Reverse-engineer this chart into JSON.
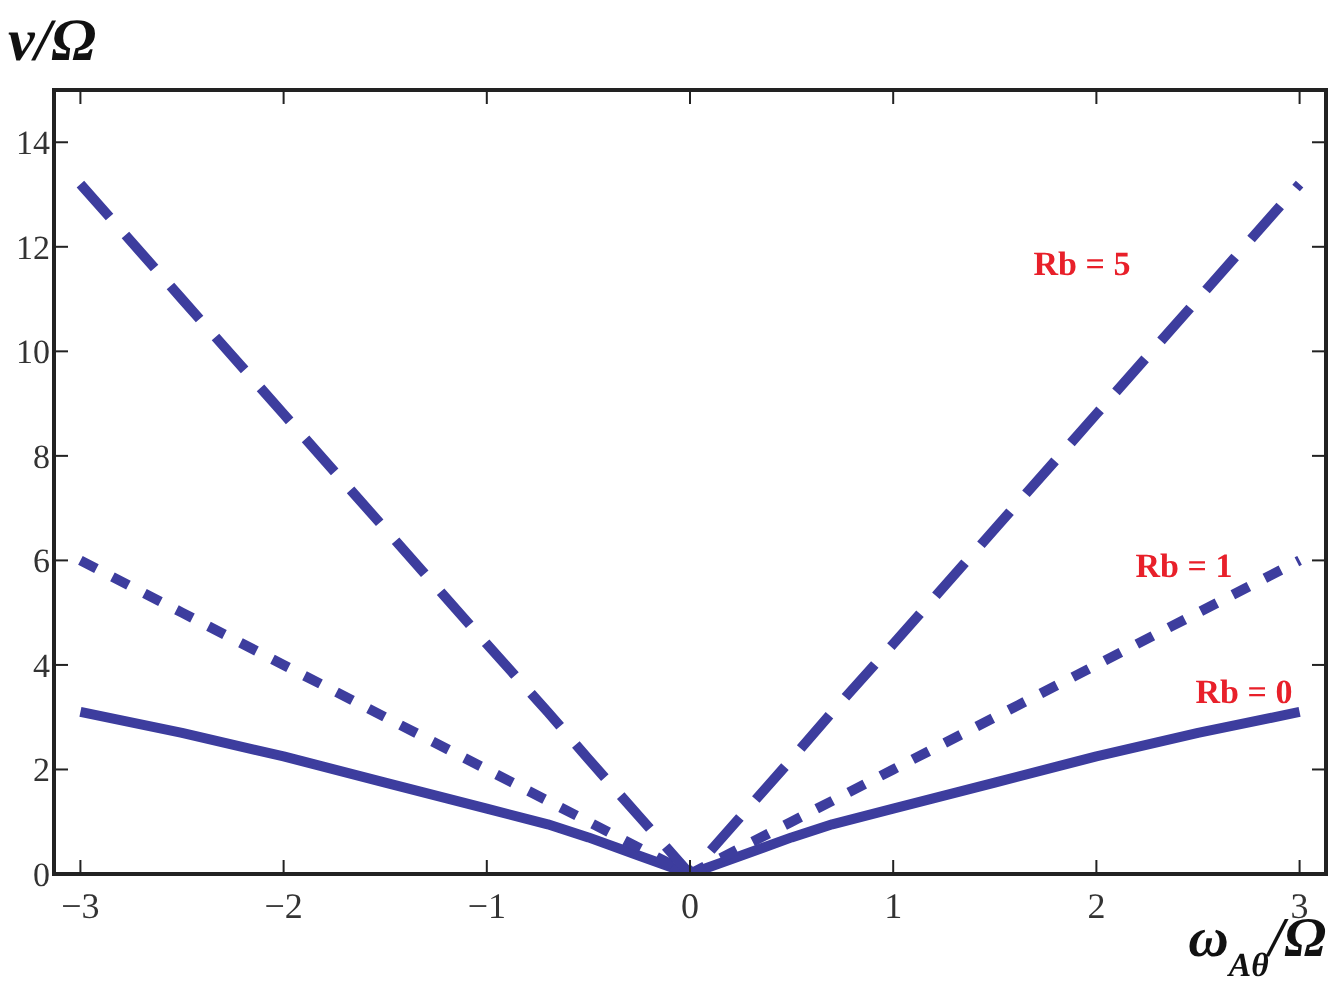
{
  "chart_data": {
    "type": "line",
    "xlabel": "ω$_{Aθ}$/Ω",
    "ylabel": "ν/Ω",
    "xlim": [
      -3.13,
      3.13
    ],
    "ylim": [
      0,
      15
    ],
    "xticks": [
      {
        "value": -3,
        "label": "−3"
      },
      {
        "value": -2,
        "label": "−2"
      },
      {
        "value": -1,
        "label": "−1"
      },
      0,
      1,
      2,
      3
    ],
    "yticks": [
      0,
      2,
      4,
      6,
      8,
      10,
      12,
      14
    ],
    "grid": false,
    "legend": false,
    "marker": "none",
    "x": [
      -3,
      -2.5,
      -2,
      -1.5,
      -1,
      -0.7,
      -0.5,
      -0.25,
      0,
      0.25,
      0.5,
      0.7,
      1,
      1.5,
      2,
      2.5,
      3
    ],
    "series": [
      {
        "name": "Rb = 0",
        "color": "#3d3d9e",
        "line_style": "solid",
        "values": [
          3.1,
          2.7,
          2.25,
          1.75,
          1.25,
          0.95,
          0.7,
          0.35,
          0,
          0.35,
          0.7,
          0.95,
          1.25,
          1.75,
          2.25,
          2.7,
          3.1
        ]
      },
      {
        "name": "Rb = 1",
        "color": "#3d3d9e",
        "line_style": "dotted",
        "values": [
          6,
          5,
          4,
          3,
          2,
          1.4,
          1,
          0.5,
          0,
          0.5,
          1,
          1.4,
          2,
          3,
          4,
          5,
          6
        ]
      },
      {
        "name": "Rb = 5",
        "color": "#3d3d9e",
        "line_style": "dashed",
        "values": [
          13.2,
          11,
          8.8,
          6.6,
          4.4,
          3.1,
          2.2,
          1.1,
          0,
          1.1,
          2.2,
          3.1,
          4.4,
          6.6,
          8.8,
          11,
          13.2
        ]
      }
    ]
  }
}
